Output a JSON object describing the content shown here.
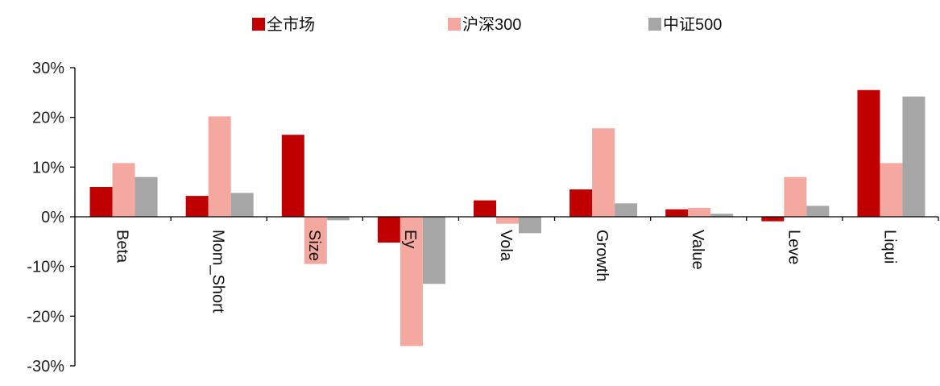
{
  "chart_data": {
    "type": "bar",
    "title": "",
    "xlabel": "",
    "ylabel": "",
    "categories": [
      "Beta",
      "Mom_Short",
      "Size",
      "Ey",
      "Vola",
      "Growth",
      "Value",
      "Leve",
      "Liqui"
    ],
    "series": [
      {
        "name": "全市场",
        "color": "#c00000",
        "values": [
          6.0,
          4.2,
          16.5,
          -5.2,
          3.3,
          5.5,
          1.5,
          -0.9,
          25.5
        ]
      },
      {
        "name": "沪深300",
        "color": "#f4a8a0",
        "values": [
          10.8,
          20.2,
          -9.5,
          -26.0,
          -1.4,
          17.8,
          1.8,
          8.0,
          10.8
        ]
      },
      {
        "name": "中证500",
        "color": "#a6a6a6",
        "values": [
          8.0,
          4.8,
          -0.7,
          -13.5,
          -3.3,
          2.7,
          0.6,
          2.2,
          24.2
        ]
      }
    ],
    "ylim": [
      -30,
      30
    ],
    "yticks": [
      30,
      20,
      10,
      0,
      -10,
      -20,
      -30
    ],
    "ytick_labels": [
      "30%",
      "20%",
      "10%",
      "0%",
      "-10%",
      "-20%",
      "-30%"
    ],
    "legend_position": "top-center",
    "grid": false
  }
}
